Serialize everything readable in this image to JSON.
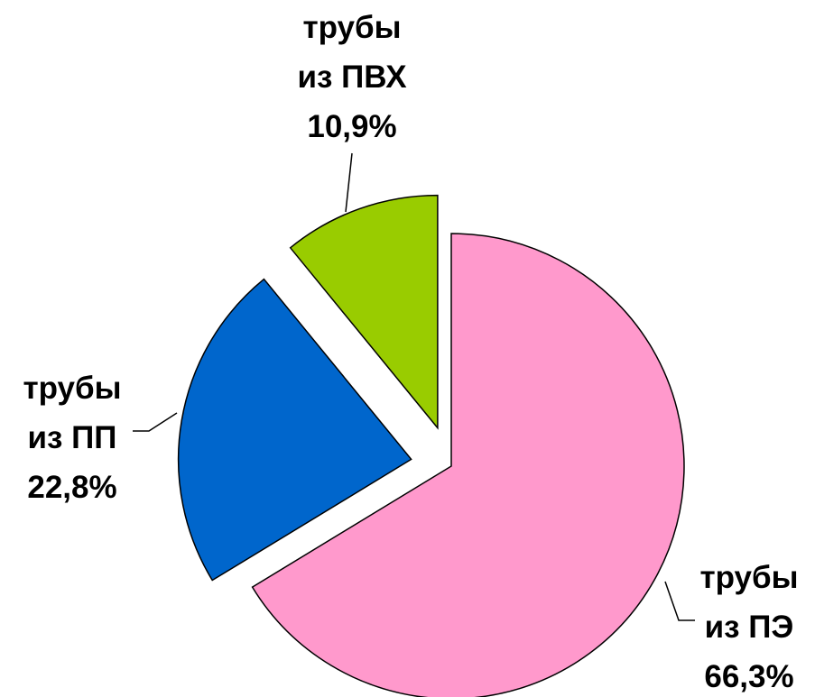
{
  "chart_data": {
    "type": "pie",
    "categories": [
      "трубы из ПЭ",
      "трубы из ПП",
      "трубы из ПВХ"
    ],
    "values": [
      66.3,
      22.8,
      10.9
    ],
    "value_labels": [
      "66,3%",
      "22,8%",
      "10,9%"
    ],
    "colors": [
      "#ff99cc",
      "#0066cc",
      "#99cc00"
    ]
  }
}
